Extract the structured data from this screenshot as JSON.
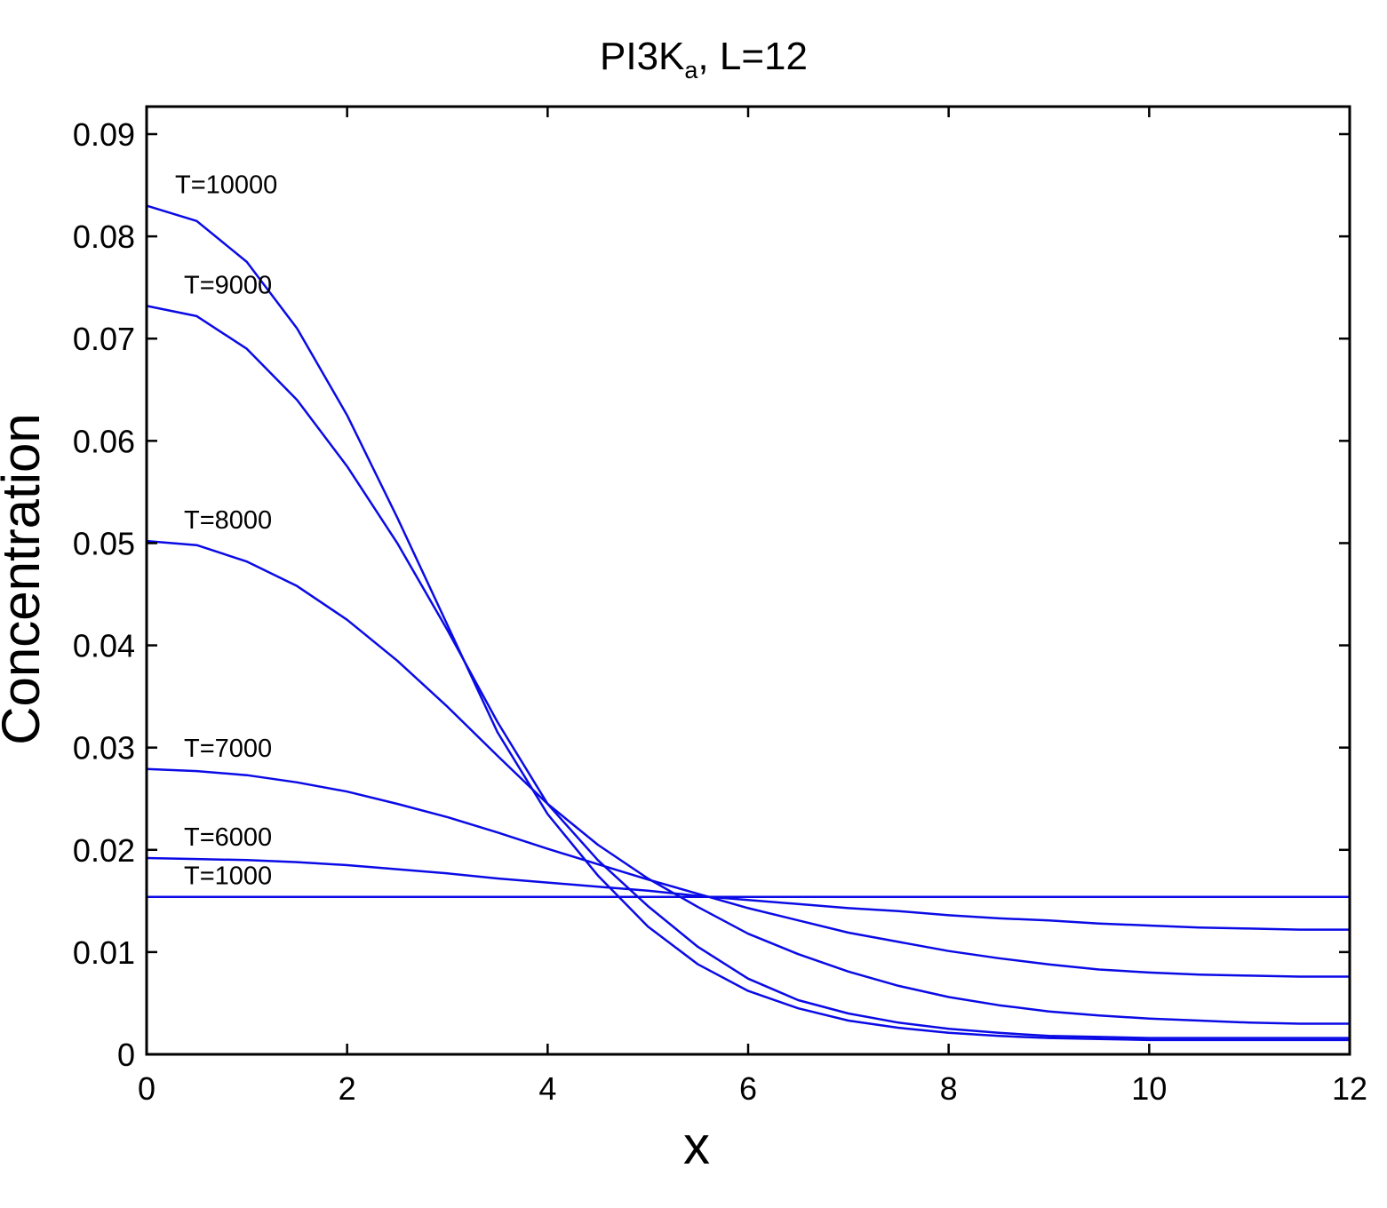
{
  "chart_data": {
    "type": "line",
    "title": {
      "main": "PI3K",
      "subscript": "a",
      "suffix": ", L=12"
    },
    "xlabel": "x",
    "ylabel": "Concentration",
    "xlim": [
      0,
      12
    ],
    "ylim": [
      0,
      0.092
    ],
    "xticks": [
      0,
      2,
      4,
      6,
      8,
      10,
      12
    ],
    "xtick_labels": [
      "0",
      "2",
      "4",
      "6",
      "8",
      "10",
      "12"
    ],
    "yticks": [
      0,
      0.01,
      0.02,
      0.03,
      0.04,
      0.05,
      0.06,
      0.07,
      0.08,
      0.09
    ],
    "ytick_labels": [
      "0",
      "0.01",
      "0.02",
      "0.03",
      "0.04",
      "0.05",
      "0.06",
      "0.07",
      "0.08",
      "0.09"
    ],
    "grid": false,
    "line_color": "#0a0ae6",
    "x": [
      0,
      0.5,
      1,
      1.5,
      2,
      2.5,
      3,
      3.5,
      4,
      4.5,
      5,
      5.5,
      6,
      6.5,
      7,
      7.5,
      8,
      8.5,
      9,
      9.5,
      10,
      10.5,
      11,
      11.5,
      12
    ],
    "series": [
      {
        "label": "T=10000",
        "values": [
          0.083,
          0.0815,
          0.0775,
          0.071,
          0.0625,
          0.0525,
          0.042,
          0.0315,
          0.0235,
          0.0175,
          0.0125,
          0.0088,
          0.0062,
          0.0045,
          0.0033,
          0.0026,
          0.0021,
          0.0018,
          0.0016,
          0.0015,
          0.0014,
          0.0014,
          0.0014,
          0.0014,
          0.0014
        ]
      },
      {
        "label": "T=9000",
        "values": [
          0.0732,
          0.0722,
          0.069,
          0.064,
          0.0575,
          0.05,
          0.0415,
          0.0325,
          0.0245,
          0.019,
          0.0145,
          0.0105,
          0.0074,
          0.0053,
          0.004,
          0.0031,
          0.0025,
          0.0021,
          0.0018,
          0.0017,
          0.0016,
          0.0016,
          0.0016,
          0.0016,
          0.0016
        ]
      },
      {
        "label": "T=8000",
        "values": [
          0.0502,
          0.0498,
          0.0482,
          0.0458,
          0.0425,
          0.0385,
          0.034,
          0.0292,
          0.0245,
          0.0205,
          0.0172,
          0.0144,
          0.0118,
          0.0098,
          0.0081,
          0.0067,
          0.0056,
          0.0048,
          0.0042,
          0.0038,
          0.0035,
          0.0033,
          0.0031,
          0.003,
          0.003
        ]
      },
      {
        "label": "T=7000",
        "values": [
          0.0279,
          0.0277,
          0.0273,
          0.0266,
          0.0257,
          0.0245,
          0.0232,
          0.0217,
          0.0201,
          0.0186,
          0.0171,
          0.0157,
          0.0143,
          0.0131,
          0.0119,
          0.011,
          0.0101,
          0.0094,
          0.0088,
          0.0083,
          0.008,
          0.0078,
          0.0077,
          0.0076,
          0.0076
        ]
      },
      {
        "label": "T=6000",
        "values": [
          0.0192,
          0.0191,
          0.019,
          0.0188,
          0.0185,
          0.0181,
          0.0177,
          0.0172,
          0.0168,
          0.0164,
          0.016,
          0.0155,
          0.0151,
          0.0147,
          0.0143,
          0.014,
          0.0136,
          0.0133,
          0.0131,
          0.0128,
          0.0126,
          0.0124,
          0.0123,
          0.0122,
          0.0122
        ]
      },
      {
        "label": "T=1000",
        "values": [
          0.0154,
          0.0154,
          0.0154,
          0.0154,
          0.0154,
          0.0154,
          0.0154,
          0.0154,
          0.0154,
          0.0154,
          0.0154,
          0.0154,
          0.0154,
          0.0154,
          0.0154,
          0.0154,
          0.0154,
          0.0154,
          0.0154,
          0.0154,
          0.0154,
          0.0154,
          0.0154,
          0.0154,
          0.0154
        ]
      }
    ]
  }
}
